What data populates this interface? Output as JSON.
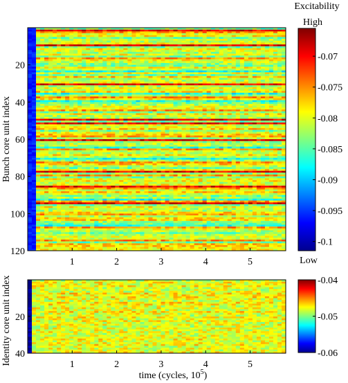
{
  "chart_data": [
    {
      "type": "heatmap",
      "xlabel": "",
      "ylabel": "Bunch core unit index",
      "xlim": [
        0,
        5.8
      ],
      "ylim": [
        120,
        0
      ],
      "x_ticks": [
        "1",
        "2",
        "3",
        "4",
        "5"
      ],
      "y_ticks": [
        "20",
        "40",
        "60",
        "80",
        "100",
        "120"
      ],
      "colorbar": {
        "title": "Excitability",
        "high_label": "High",
        "low_label": "Low",
        "range": [
          -0.1015,
          -0.0655
        ],
        "ticks": [
          "-0.07",
          "-0.075",
          "-0.08",
          "-0.085",
          "-0.09",
          "-0.095",
          "-0.1"
        ],
        "colormap": "jet"
      },
      "grid": false,
      "rows": 120,
      "hot_rows_red": [
        2,
        10,
        31,
        50,
        52,
        61,
        78,
        86,
        95
      ],
      "cold_rows_blue": [
        24,
        36,
        40,
        65,
        71,
        93,
        107
      ],
      "initial_transient": "low excitability at t < 0.2",
      "steady_level_approx": -0.08
    },
    {
      "type": "heatmap",
      "xlabel": "time (cycles, 10",
      "xlabel_exp": "5",
      "xlabel_close": ")",
      "ylabel": "Identity core unit index",
      "xlim": [
        0,
        5.8
      ],
      "ylim": [
        40,
        0
      ],
      "x_ticks": [
        "1",
        "2",
        "3",
        "4",
        "5"
      ],
      "y_ticks": [
        "20",
        "40"
      ],
      "colorbar": {
        "range": [
          -0.06,
          -0.04
        ],
        "ticks": [
          "-0.04",
          "-0.05",
          "-0.06"
        ],
        "colormap": "jet"
      },
      "grid": false,
      "rows": 40,
      "initial_transient": "value about -0.06 for t < 0.1",
      "steady_level_approx": -0.048
    }
  ]
}
